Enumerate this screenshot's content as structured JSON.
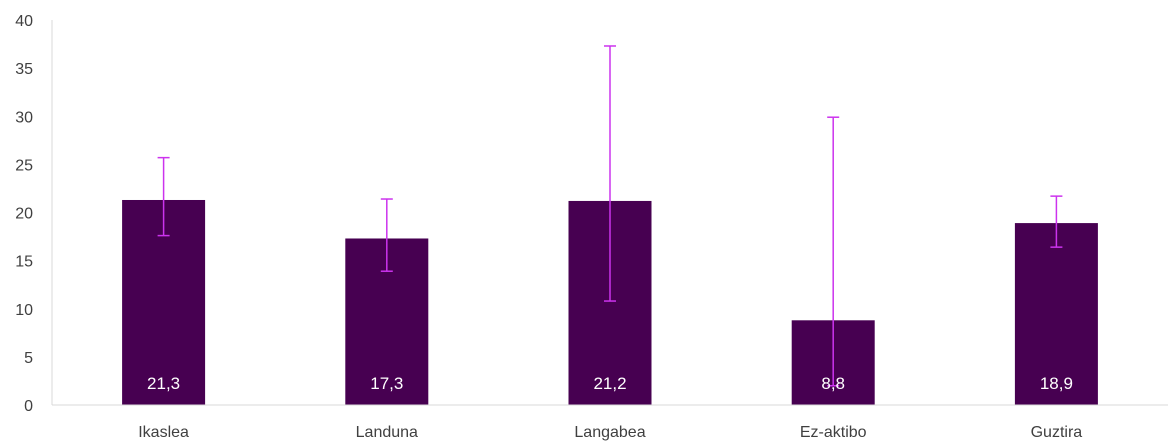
{
  "colors": {
    "bar": "#470051",
    "error_bar": "#cc33ee",
    "axis": "#d9d9d9",
    "text": "#404040",
    "data_label": "#ffffff"
  },
  "chart_data": {
    "type": "bar",
    "categories": [
      "Ikaslea",
      "Landuna",
      "Langabea",
      "Ez-aktibo",
      "Guztira"
    ],
    "values": [
      21.3,
      17.3,
      21.2,
      8.8,
      18.9
    ],
    "data_labels": [
      "21,3",
      "17,3",
      "21,2",
      "8,8",
      "18,9"
    ],
    "error_low": [
      17.6,
      13.9,
      10.8,
      2.0,
      16.4
    ],
    "error_high": [
      25.7,
      21.4,
      37.3,
      29.9,
      21.7
    ],
    "ylim": [
      0,
      40
    ],
    "yticks": [
      "0",
      "5",
      "10",
      "15",
      "20",
      "25",
      "30",
      "35",
      "40"
    ],
    "title": "",
    "xlabel": "",
    "ylabel": "",
    "grid": false,
    "legend": "none"
  }
}
